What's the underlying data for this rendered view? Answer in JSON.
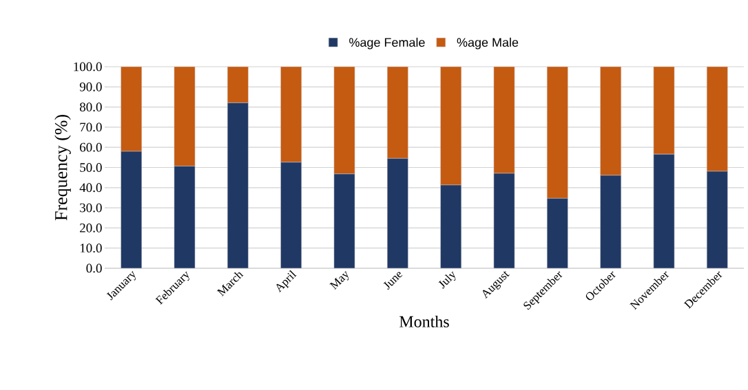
{
  "chart_data": {
    "type": "bar",
    "stacked": true,
    "xlabel": "Months",
    "ylabel": "Frequency (%)",
    "categories": [
      "January",
      "February",
      "March",
      "April",
      "May",
      "June",
      "July",
      "August",
      "September",
      "October",
      "November",
      "December"
    ],
    "series": [
      {
        "name": "%age Female",
        "color": "#203864",
        "values": [
          58.0,
          50.7,
          82.1,
          52.6,
          46.8,
          54.5,
          41.3,
          47.1,
          34.7,
          46.1,
          56.6,
          48.1
        ]
      },
      {
        "name": "%age Male",
        "color": "#c55a11",
        "values": [
          42.0,
          49.3,
          17.9,
          47.4,
          53.2,
          45.5,
          58.7,
          52.9,
          65.3,
          53.9,
          43.4,
          51.9
        ]
      }
    ],
    "ylim": [
      0,
      100
    ],
    "yticks": [
      {
        "value": 0,
        "label": "0.0"
      },
      {
        "value": 10,
        "label": "10.0"
      },
      {
        "value": 20,
        "label": "20.0"
      },
      {
        "value": 30,
        "label": "30.0"
      },
      {
        "value": 40,
        "label": "40.0"
      },
      {
        "value": 50,
        "label": "50.0"
      },
      {
        "value": 60,
        "label": "60.0"
      },
      {
        "value": 70,
        "label": "70.0"
      },
      {
        "value": 80,
        "label": "80.0"
      },
      {
        "value": 90,
        "label": "90.0"
      },
      {
        "value": 100,
        "label": "100.0"
      }
    ],
    "grid": "y",
    "legend": "top"
  }
}
